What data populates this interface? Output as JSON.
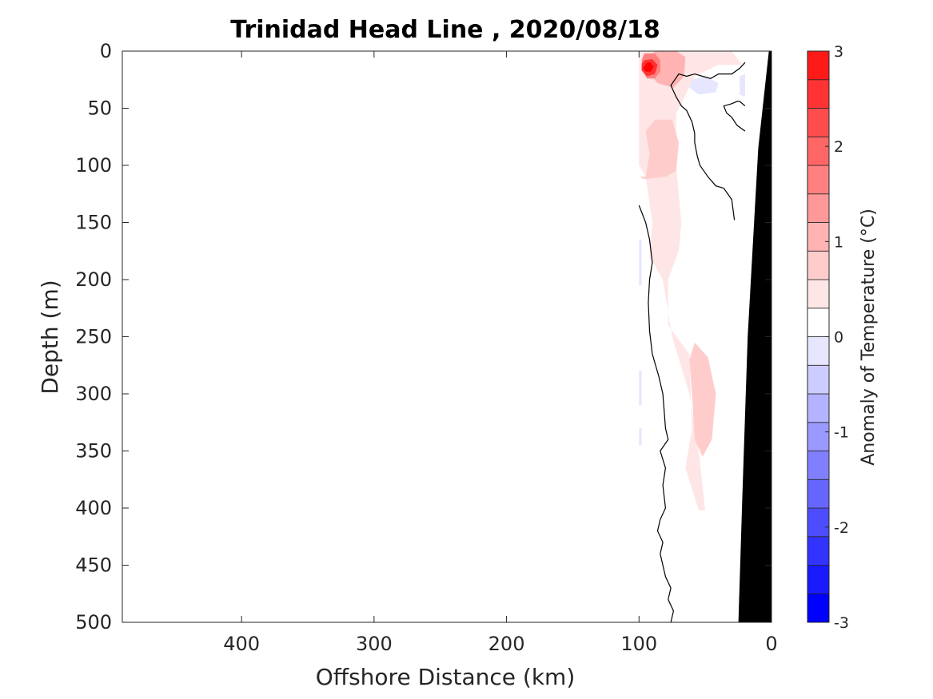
{
  "chart_data": {
    "type": "contour",
    "title": "Trinidad Head Line , 2020/08/18",
    "xlabel": "Offshore Distance (km)",
    "ylabel": "Depth (m)",
    "colorbar_label": "Anomaly of Temperature (°C)",
    "xlim": [
      490,
      0
    ],
    "ylim": [
      0,
      500
    ],
    "x_reversed": true,
    "y_reversed": true,
    "xticks": [
      400,
      300,
      200,
      100,
      0
    ],
    "yticks": [
      0,
      50,
      100,
      150,
      200,
      250,
      300,
      350,
      400,
      450,
      500
    ],
    "colorbar": {
      "range": [
        -3,
        3
      ],
      "ticks": [
        3,
        2,
        1,
        0,
        -1,
        -2,
        -3
      ],
      "levels": [
        -3,
        -2.7,
        -2.4,
        -2.1,
        -1.8,
        -1.5,
        -1.2,
        -0.9,
        -0.6,
        -0.3,
        0,
        0.3,
        0.6,
        0.9,
        1.2,
        1.5,
        1.8,
        2.1,
        2.4,
        2.7,
        3
      ],
      "colors": [
        "#0000ff",
        "#1a1aff",
        "#3333ff",
        "#4d4dff",
        "#6666ff",
        "#8080ff",
        "#9999ff",
        "#b3b3ff",
        "#ccccff",
        "#e6e6ff",
        "#ffffff",
        "#ffffff",
        "#ffe6e6",
        "#ffcccc",
        "#ffb3b3",
        "#ff9999",
        "#ff8080",
        "#ff6666",
        "#ff4d4d",
        "#ff3333",
        "#ff1a1a",
        "#ff0000"
      ]
    },
    "anomaly_regions": [
      {
        "value": 0.3,
        "polygon": [
          [
            100,
            0
          ],
          [
            30,
            0
          ],
          [
            22,
            12
          ],
          [
            40,
            12
          ],
          [
            58,
            22
          ],
          [
            72,
            55
          ],
          [
            72,
            100
          ],
          [
            68,
            150
          ],
          [
            70,
            175
          ],
          [
            78,
            200
          ],
          [
            78,
            240
          ],
          [
            62,
            265
          ],
          [
            60,
            330
          ],
          [
            65,
            365
          ],
          [
            55,
            402
          ],
          [
            50,
            402
          ],
          [
            55,
            350
          ],
          [
            62,
            300
          ],
          [
            75,
            250
          ],
          [
            82,
            200
          ],
          [
            92,
            180
          ],
          [
            90,
            150
          ],
          [
            95,
            110
          ],
          [
            100,
            100
          ]
        ]
      },
      {
        "value": 0.6,
        "polygon": [
          [
            100,
            110
          ],
          [
            95,
            110
          ],
          [
            92,
            90
          ],
          [
            95,
            70
          ],
          [
            88,
            60
          ],
          [
            75,
            60
          ],
          [
            70,
            80
          ],
          [
            72,
            105
          ],
          [
            80,
            110
          ],
          [
            96,
            112
          ]
        ]
      },
      {
        "value": 0.6,
        "polygon": [
          [
            58,
            255
          ],
          [
            48,
            268
          ],
          [
            42,
            300
          ],
          [
            45,
            340
          ],
          [
            52,
            355
          ],
          [
            58,
            340
          ],
          [
            60,
            300
          ],
          [
            62,
            270
          ]
        ]
      },
      {
        "value": 0.9,
        "polygon": [
          [
            88,
            0
          ],
          [
            72,
            0
          ],
          [
            65,
            5
          ],
          [
            66,
            22
          ],
          [
            74,
            32
          ],
          [
            86,
            28
          ],
          [
            92,
            20
          ],
          [
            96,
            10
          ]
        ]
      },
      {
        "value": 1.5,
        "polygon": [
          [
            96,
            2
          ],
          [
            88,
            2
          ],
          [
            84,
            8
          ],
          [
            84,
            18
          ],
          [
            88,
            24
          ],
          [
            94,
            24
          ],
          [
            97,
            18
          ],
          [
            98,
            8
          ]
        ]
      },
      {
        "value": 2.4,
        "polygon": [
          [
            96,
            8
          ],
          [
            90,
            7
          ],
          [
            86,
            12
          ],
          [
            88,
            20
          ],
          [
            94,
            22
          ],
          [
            98,
            17
          ],
          [
            98,
            11
          ]
        ]
      },
      {
        "value": 3.0,
        "polygon": [
          [
            94,
            10
          ],
          [
            91,
            10
          ],
          [
            89,
            14
          ],
          [
            91,
            18
          ],
          [
            95,
            18
          ],
          [
            97,
            15
          ]
        ]
      },
      {
        "value": 0.3,
        "polygon": [
          [
            48,
            0
          ],
          [
            30,
            0
          ],
          [
            36,
            8
          ],
          [
            44,
            8
          ]
        ]
      },
      {
        "value": -0.3,
        "polygon": [
          [
            60,
            25
          ],
          [
            50,
            22
          ],
          [
            40,
            28
          ],
          [
            42,
            36
          ],
          [
            55,
            38
          ],
          [
            62,
            32
          ]
        ]
      },
      {
        "value": -0.3,
        "polygon": [
          [
            24,
            22
          ],
          [
            20,
            20
          ],
          [
            20,
            40
          ],
          [
            24,
            38
          ]
        ]
      },
      {
        "value": -0.3,
        "polygon": [
          [
            100,
            165
          ],
          [
            98,
            165
          ],
          [
            98,
            205
          ],
          [
            100,
            205
          ]
        ]
      },
      {
        "value": -0.3,
        "polygon": [
          [
            100,
            280
          ],
          [
            98,
            280
          ],
          [
            98,
            310
          ],
          [
            100,
            310
          ]
        ]
      },
      {
        "value": -0.3,
        "polygon": [
          [
            100,
            330
          ],
          [
            98,
            330
          ],
          [
            98,
            345
          ],
          [
            100,
            345
          ]
        ]
      }
    ],
    "zero_contours": [
      [
        [
          100,
          135
        ],
        [
          95,
          150
        ],
        [
          92,
          165
        ],
        [
          90,
          185
        ],
        [
          92,
          200
        ],
        [
          93,
          220
        ],
        [
          92,
          245
        ],
        [
          90,
          265
        ],
        [
          85,
          285
        ],
        [
          82,
          300
        ],
        [
          80,
          330
        ],
        [
          78,
          340
        ],
        [
          84,
          350
        ],
        [
          80,
          365
        ],
        [
          82,
          380
        ],
        [
          80,
          400
        ],
        [
          84,
          410
        ],
        [
          86,
          420
        ],
        [
          82,
          430
        ],
        [
          84,
          440
        ],
        [
          82,
          450
        ],
        [
          80,
          460
        ],
        [
          76,
          470
        ],
        [
          78,
          480
        ],
        [
          74,
          490
        ],
        [
          76,
          500
        ]
      ],
      [
        [
          20,
          10
        ],
        [
          24,
          15
        ],
        [
          30,
          20
        ],
        [
          40,
          20
        ],
        [
          46,
          24
        ],
        [
          52,
          22
        ],
        [
          58,
          20
        ],
        [
          64,
          22
        ],
        [
          70,
          20
        ],
        [
          76,
          30
        ],
        [
          72,
          40
        ],
        [
          68,
          48
        ],
        [
          64,
          52
        ],
        [
          60,
          62
        ],
        [
          58,
          72
        ],
        [
          58,
          80
        ],
        [
          56,
          92
        ],
        [
          54,
          100
        ],
        [
          48,
          110
        ],
        [
          42,
          118
        ],
        [
          36,
          120
        ],
        [
          30,
          130
        ],
        [
          28,
          148
        ]
      ],
      [
        [
          20,
          48
        ],
        [
          24,
          44
        ],
        [
          26,
          44
        ],
        [
          30,
          46
        ],
        [
          36,
          48
        ],
        [
          34,
          54
        ],
        [
          30,
          58
        ],
        [
          26,
          65
        ],
        [
          20,
          70
        ]
      ]
    ],
    "bathymetry": [
      [
        0,
        0
      ],
      [
        2,
        0
      ],
      [
        10,
        85
      ],
      [
        18,
        250
      ],
      [
        22,
        390
      ],
      [
        25,
        500
      ],
      [
        0,
        500
      ]
    ]
  }
}
